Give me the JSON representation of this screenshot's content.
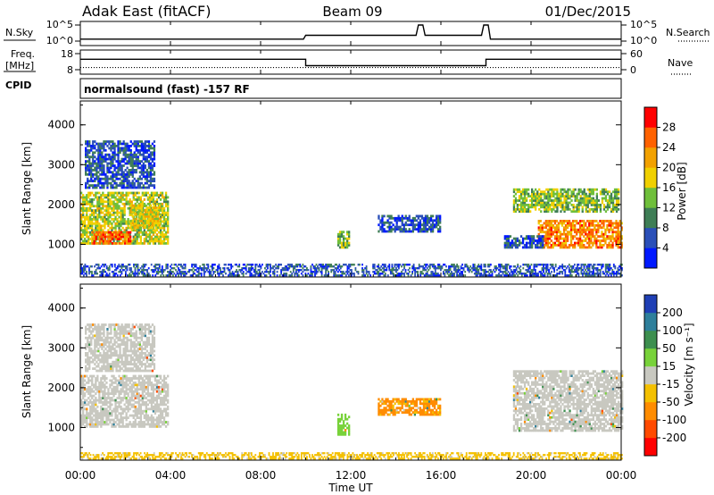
{
  "header": {
    "radar": "Adak East (fitACF)",
    "beam": "Beam 09",
    "date": "01/Dec/2015"
  },
  "noise_panel": {
    "left_label": "N.Sky",
    "right_label": "N.Search",
    "left_ticks": [
      "10^5",
      "10^0"
    ],
    "right_ticks": [
      "10^5",
      "10^0"
    ]
  },
  "freq_panel": {
    "left_label_1": "Freq.",
    "left_label_2": "[MHz]",
    "right_label": "Nave",
    "left_ticks": [
      "18",
      "8"
    ],
    "right_ticks": [
      "60",
      "0"
    ]
  },
  "cpid": {
    "label": "CPID",
    "text": "normalsound (fast) -157 RF"
  },
  "x_axis": {
    "ticks": [
      "00:00",
      "04:00",
      "08:00",
      "12:00",
      "16:00",
      "20:00",
      "00:00"
    ],
    "title": "Time UT"
  },
  "y_axis": {
    "title": "Slant Range [km]",
    "ticks": [
      "1000",
      "2000",
      "3000",
      "4000"
    ]
  },
  "power_colorbar": {
    "title": "Power [dB]",
    "ticks": [
      "4",
      "8",
      "12",
      "16",
      "20",
      "24",
      "28"
    ],
    "colors": [
      "#0019ff",
      "#2a4fb8",
      "#3f7e56",
      "#6fbf3b",
      "#f0d000",
      "#f2a100",
      "#ff6200",
      "#ff0000"
    ]
  },
  "velocity_colorbar": {
    "title": "Velocity [m s⁻¹]",
    "ticks": [
      "200",
      "100",
      "50",
      "15",
      "-15",
      "-50",
      "-100",
      "-200"
    ],
    "colors": [
      "#1f3fb5",
      "#2e7f9b",
      "#3d8f4f",
      "#78d23a",
      "#c8c8c0",
      "#f4c000",
      "#ff8c00",
      "#ff4a00",
      "#ff0000"
    ]
  },
  "chart_data": [
    {
      "type": "line",
      "series": [
        {
          "name": "N.Sky",
          "x": [
            0,
            9.9,
            10.0,
            14.9,
            15.0,
            15.2,
            15.3,
            17.8,
            17.9,
            18.1,
            18.2,
            24
          ],
          "y": [
            0.6,
            0.6,
            1.8,
            1.8,
            5,
            5,
            1.8,
            1.8,
            5,
            5,
            0.6,
            0.6
          ]
        }
      ],
      "xlim": [
        0,
        24
      ]
    },
    {
      "type": "line",
      "series": [
        {
          "name": "Freq.",
          "x": [
            0,
            10,
            10,
            18,
            18,
            24
          ],
          "y": [
            14.5,
            14.5,
            10.5,
            10.5,
            14.5,
            14.5
          ]
        },
        {
          "name": "Nave",
          "x": [
            0,
            24
          ],
          "y": [
            8,
            8
          ]
        }
      ],
      "xlim": [
        0,
        24
      ]
    },
    {
      "type": "heatmap",
      "title": "Power [dB]",
      "xlabel": "Time UT",
      "ylabel": "Slant Range [km]",
      "xlim": [
        0,
        24
      ],
      "ylim": [
        180,
        4600
      ],
      "regions": [
        {
          "t0": 0.0,
          "t1": 3.9,
          "r0": 1000,
          "r1": 2300,
          "value": 16
        },
        {
          "t0": 0.5,
          "t1": 2.2,
          "r0": 1000,
          "r1": 1300,
          "value": 26
        },
        {
          "t0": 2.2,
          "t1": 3.5,
          "r0": 1400,
          "r1": 2000,
          "value": 18
        },
        {
          "t0": 0.2,
          "t1": 3.3,
          "r0": 2400,
          "r1": 3600,
          "value": 6
        },
        {
          "t0": 11.4,
          "t1": 11.9,
          "r0": 900,
          "r1": 1300,
          "value": 14
        },
        {
          "t0": 13.2,
          "t1": 16.0,
          "r0": 1300,
          "r1": 1700,
          "value": 6
        },
        {
          "t0": 19.2,
          "t1": 23.9,
          "r0": 1800,
          "r1": 2400,
          "value": 14
        },
        {
          "t0": 20.3,
          "t1": 24.0,
          "r0": 900,
          "r1": 1600,
          "value": 24
        },
        {
          "t0": 18.8,
          "t1": 20.5,
          "r0": 900,
          "r1": 1200,
          "value": 6
        },
        {
          "t0": 0.0,
          "t1": 24.0,
          "r0": 200,
          "r1": 500,
          "value": 6
        }
      ]
    },
    {
      "type": "heatmap",
      "title": "Velocity [m s⁻¹]",
      "xlabel": "Time UT",
      "ylabel": "Slant Range [km]",
      "xlim": [
        0,
        24
      ],
      "ylim": [
        180,
        4600
      ],
      "regions": [
        {
          "t0": 0.0,
          "t1": 3.9,
          "r0": 1000,
          "r1": 2300,
          "value": 0
        },
        {
          "t0": 0.2,
          "t1": 3.3,
          "r0": 2400,
          "r1": 3600,
          "value": 0
        },
        {
          "t0": 11.4,
          "t1": 11.9,
          "r0": 800,
          "r1": 1300,
          "value": 30
        },
        {
          "t0": 13.2,
          "t1": 16.0,
          "r0": 1300,
          "r1": 1700,
          "value": -60
        },
        {
          "t0": 19.2,
          "t1": 24.0,
          "r0": 900,
          "r1": 2400,
          "value": 0
        },
        {
          "t0": 0.0,
          "t1": 24.0,
          "r0": 200,
          "r1": 350,
          "value": -30
        }
      ]
    }
  ]
}
